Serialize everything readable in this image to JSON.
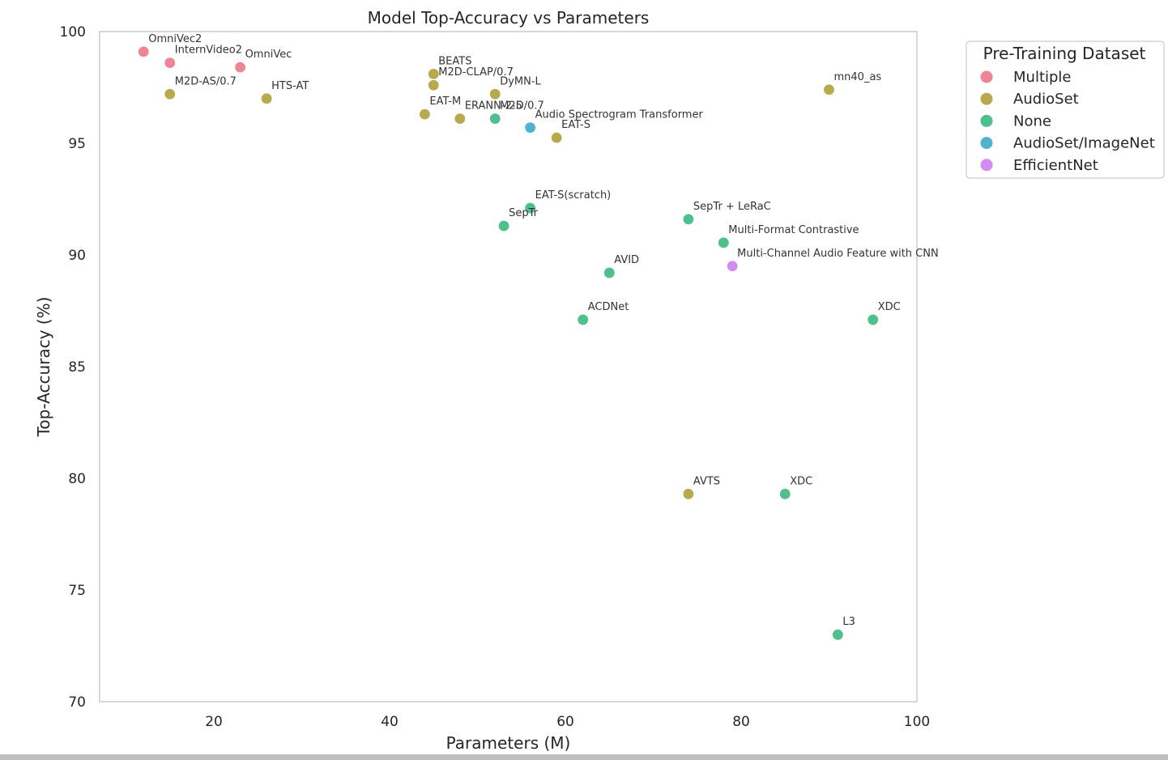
{
  "chart_data": {
    "type": "scatter",
    "title": "Model Top-Accuracy vs Parameters",
    "xlabel": "Parameters (M)",
    "ylabel": "Top-Accuracy (%)",
    "xlim": [
      7,
      100
    ],
    "ylim": [
      70,
      100
    ],
    "x_ticks": [
      20,
      40,
      60,
      80,
      100
    ],
    "y_ticks": [
      70,
      75,
      80,
      85,
      90,
      95,
      100
    ],
    "grid": false,
    "legend": {
      "title": "Pre-Training Dataset",
      "position": "outside-top-right",
      "entries": [
        {
          "name": "Multiple",
          "color": "#f08497"
        },
        {
          "name": "AudioSet",
          "color": "#b9a94e"
        },
        {
          "name": "None",
          "color": "#4fbf8c"
        },
        {
          "name": "AudioSet/ImageNet",
          "color": "#4fb3d0"
        },
        {
          "name": "EfficientNet",
          "color": "#d18ef0"
        }
      ]
    },
    "points": [
      {
        "label": "OmniVec2",
        "x": 12,
        "y": 99.1,
        "group": 0
      },
      {
        "label": "InternVideo2",
        "x": 15,
        "y": 98.6,
        "group": 0
      },
      {
        "label": "OmniVec",
        "x": 23,
        "y": 98.4,
        "group": 0
      },
      {
        "label": "M2D-AS/0.7",
        "x": 15,
        "y": 97.2,
        "group": 1
      },
      {
        "label": "HTS-AT",
        "x": 26,
        "y": 97.0,
        "group": 1
      },
      {
        "label": "BEATS",
        "x": 45,
        "y": 98.1,
        "group": 1
      },
      {
        "label": "M2D-CLAP/0.7",
        "x": 45,
        "y": 97.6,
        "group": 1
      },
      {
        "label": "DyMN-L",
        "x": 52,
        "y": 97.2,
        "group": 1
      },
      {
        "label": "EAT-M",
        "x": 44,
        "y": 96.3,
        "group": 1
      },
      {
        "label": "ERANN-2-5",
        "x": 48,
        "y": 96.1,
        "group": 1
      },
      {
        "label": "M2D/0.7",
        "x": 52,
        "y": 96.1,
        "group": 2
      },
      {
        "label": "Audio Spectrogram Transformer",
        "x": 56,
        "y": 95.7,
        "group": 3
      },
      {
        "label": "EAT-S",
        "x": 59,
        "y": 95.25,
        "group": 1
      },
      {
        "label": "mn40_as",
        "x": 90,
        "y": 97.4,
        "group": 1
      },
      {
        "label": "EAT-S(scratch)",
        "x": 56,
        "y": 92.1,
        "group": 2
      },
      {
        "label": "SepTr",
        "x": 53,
        "y": 91.3,
        "group": 2
      },
      {
        "label": "SepTr + LeRaC",
        "x": 74,
        "y": 91.6,
        "group": 2
      },
      {
        "label": "Multi-Format Contrastive",
        "x": 78,
        "y": 90.55,
        "group": 2
      },
      {
        "label": "Multi-Channel Audio Feature with CNN",
        "x": 79,
        "y": 89.5,
        "group": 4
      },
      {
        "label": "AVID",
        "x": 65,
        "y": 89.2,
        "group": 2
      },
      {
        "label": "ACDNet",
        "x": 62,
        "y": 87.1,
        "group": 2
      },
      {
        "label": "XDC",
        "x": 95,
        "y": 87.1,
        "group": 2
      },
      {
        "label": "AVTS",
        "x": 74,
        "y": 79.3,
        "group": 1
      },
      {
        "label": "XDC",
        "x": 85,
        "y": 79.3,
        "group": 2
      },
      {
        "label": "L3",
        "x": 91,
        "y": 73.0,
        "group": 2
      }
    ]
  }
}
